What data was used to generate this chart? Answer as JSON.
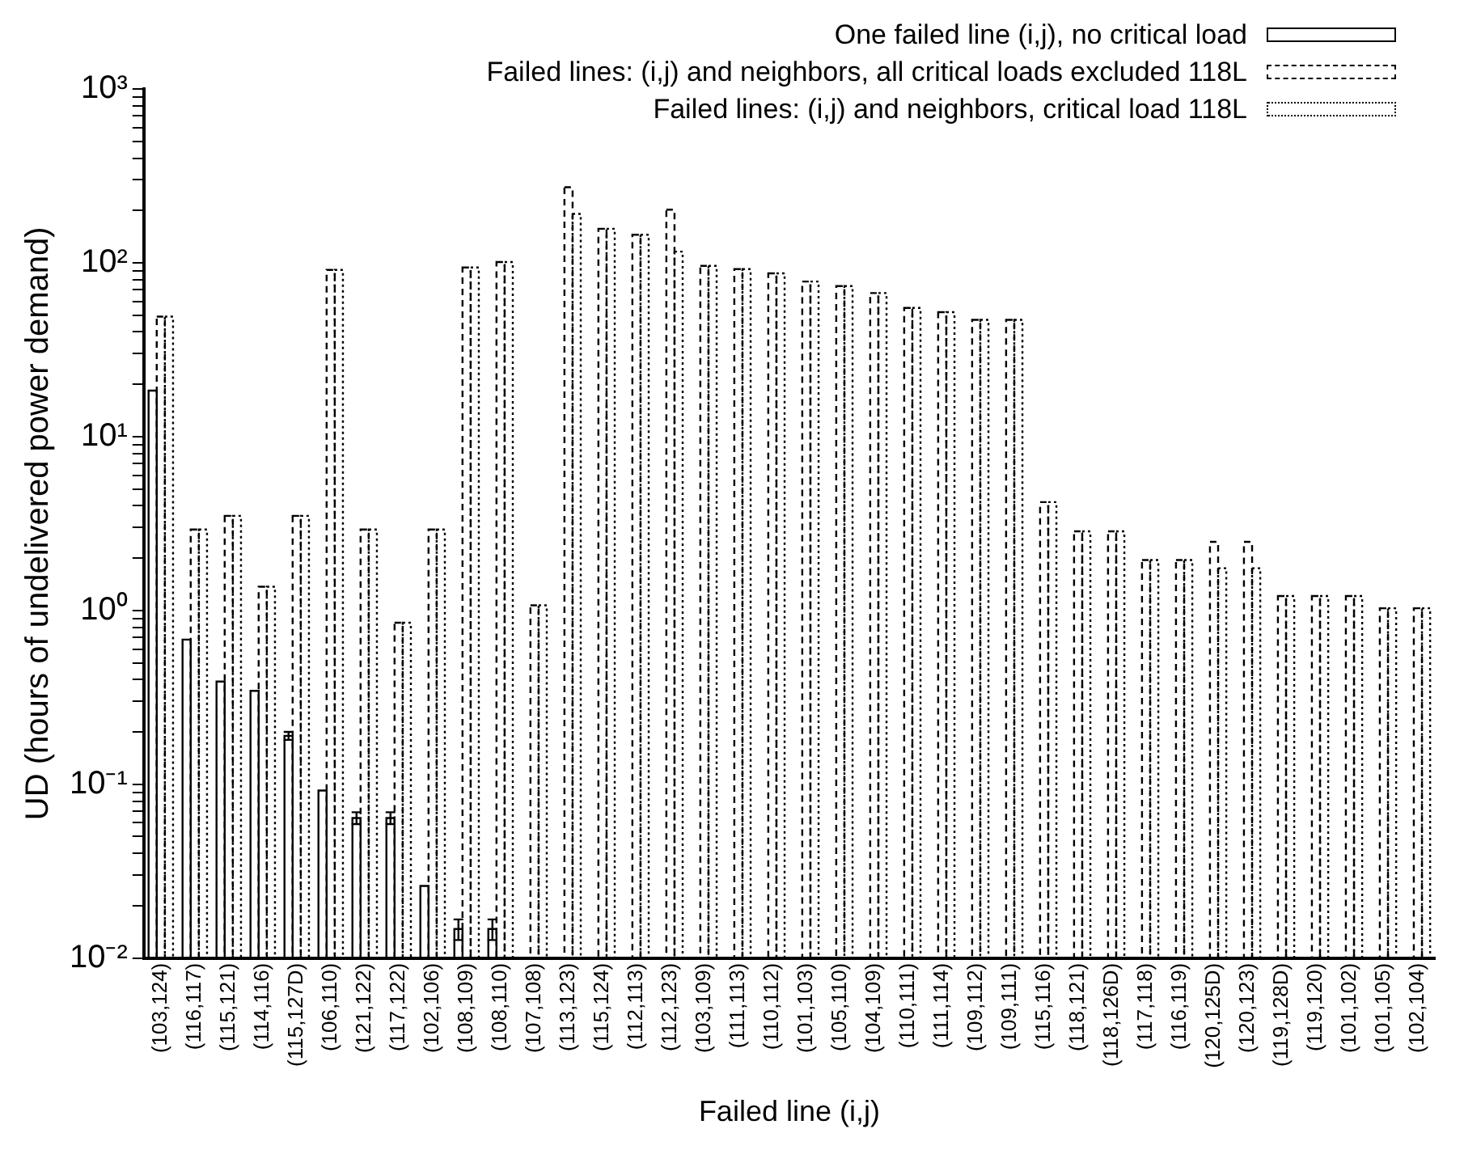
{
  "chart_data": {
    "type": "bar",
    "xlabel": "Failed line (i,j)",
    "ylabel": "UD (hours of undelivered power demand)",
    "categories": [
      "(103,124)",
      "(116,117)",
      "(115,121)",
      "(114,116)",
      "(115,127D)",
      "(106,110)",
      "(121,122)",
      "(117,122)",
      "(102,106)",
      "(108,109)",
      "(108,110)",
      "(107,108)",
      "(113,123)",
      "(115,124)",
      "(112,113)",
      "(112,123)",
      "(103,109)",
      "(111,113)",
      "(110,112)",
      "(101,103)",
      "(105,110)",
      "(104,109)",
      "(110,111)",
      "(111,114)",
      "(109,112)",
      "(109,111)",
      "(115,116)",
      "(118,121)",
      "(118,126D)",
      "(117,118)",
      "(116,119)",
      "(120,125D)",
      "(120,123)",
      "(119,128D)",
      "(119,120)",
      "(101,102)",
      "(101,105)",
      "(102,104)"
    ],
    "series": [
      {
        "name": "One failed line (i,j), no critical load",
        "color": "#000000",
        "line_style": "solid",
        "values": [
          18.4,
          0.68,
          0.39,
          0.345,
          0.19,
          0.092,
          0.064,
          0.064,
          0.026,
          0.0147,
          0.0147,
          null,
          null,
          null,
          null,
          null,
          null,
          null,
          null,
          null,
          null,
          null,
          null,
          null,
          null,
          null,
          null,
          null,
          null,
          null,
          null,
          null,
          null,
          null,
          null,
          null,
          null,
          null
        ],
        "errors": [
          null,
          null,
          null,
          null,
          0.01,
          null,
          0.005,
          0.005,
          null,
          0.002,
          0.002,
          null,
          null,
          null,
          null,
          null,
          null,
          null,
          null,
          null,
          null,
          null,
          null,
          null,
          null,
          null,
          null,
          null,
          null,
          null,
          null,
          null,
          null,
          null,
          null,
          null,
          null,
          null
        ]
      },
      {
        "name": "Failed lines: (i,j) and neighbors, all critical loads excluded 118L",
        "color": "#000000",
        "line_style": "dashed",
        "values": [
          49,
          2.92,
          3.5,
          1.37,
          3.5,
          91,
          2.92,
          0.85,
          2.92,
          94,
          101,
          1.07,
          272,
          157,
          145,
          202,
          96,
          92,
          87,
          78,
          73.5,
          67,
          55,
          52,
          47,
          47,
          4.2,
          2.85,
          2.85,
          1.95,
          1.95,
          2.48,
          2.48,
          1.21,
          1.21,
          1.21,
          1.03,
          1.03
        ]
      },
      {
        "name": "Failed lines: (i,j) and neighbors, critical load 118L",
        "color": "#000000",
        "line_style": "dotted",
        "values": [
          49,
          2.92,
          3.5,
          1.37,
          3.5,
          91,
          2.92,
          0.85,
          2.92,
          94,
          101,
          1.07,
          191,
          157,
          145,
          116,
          96,
          92,
          87,
          78,
          73.5,
          67,
          55,
          52,
          47,
          47,
          4.2,
          2.85,
          2.85,
          1.95,
          1.95,
          1.75,
          1.75,
          1.21,
          1.21,
          1.21,
          1.03,
          1.03
        ]
      }
    ],
    "log": "y",
    "ylim": [
      0.01,
      1000
    ],
    "yticks": [
      {
        "value": 0.01,
        "label": "10⁻²"
      },
      {
        "value": 0.02,
        "label": null
      },
      {
        "value": 0.03,
        "label": null
      },
      {
        "value": 0.04,
        "label": null
      },
      {
        "value": 0.05,
        "label": null
      },
      {
        "value": 0.06,
        "label": null
      },
      {
        "value": 0.07,
        "label": null
      },
      {
        "value": 0.08,
        "label": null
      },
      {
        "value": 0.09,
        "label": null
      },
      {
        "value": 0.1,
        "label": "10⁻¹"
      },
      {
        "value": 0.2,
        "label": null
      },
      {
        "value": 0.3,
        "label": null
      },
      {
        "value": 0.4,
        "label": null
      },
      {
        "value": 0.5,
        "label": null
      },
      {
        "value": 0.6,
        "label": null
      },
      {
        "value": 0.7,
        "label": null
      },
      {
        "value": 0.8,
        "label": null
      },
      {
        "value": 0.9,
        "label": null
      },
      {
        "value": 1,
        "label": "10⁰"
      },
      {
        "value": 2,
        "label": null
      },
      {
        "value": 3,
        "label": null
      },
      {
        "value": 4,
        "label": null
      },
      {
        "value": 5,
        "label": null
      },
      {
        "value": 6,
        "label": null
      },
      {
        "value": 7,
        "label": null
      },
      {
        "value": 8,
        "label": null
      },
      {
        "value": 9,
        "label": null
      },
      {
        "value": 10,
        "label": "10¹"
      },
      {
        "value": 20,
        "label": null
      },
      {
        "value": 30,
        "label": null
      },
      {
        "value": 40,
        "label": null
      },
      {
        "value": 50,
        "label": null
      },
      {
        "value": 60,
        "label": null
      },
      {
        "value": 70,
        "label": null
      },
      {
        "value": 80,
        "label": null
      },
      {
        "value": 90,
        "label": null
      },
      {
        "value": 100,
        "label": "10²"
      },
      {
        "value": 200,
        "label": null
      },
      {
        "value": 300,
        "label": null
      },
      {
        "value": 400,
        "label": null
      },
      {
        "value": 500,
        "label": null
      },
      {
        "value": 600,
        "label": null
      },
      {
        "value": 700,
        "label": null
      },
      {
        "value": 800,
        "label": null
      },
      {
        "value": 900,
        "label": null
      },
      {
        "value": 1000,
        "label": "10³"
      }
    ],
    "grid": false,
    "legend": "top right"
  }
}
